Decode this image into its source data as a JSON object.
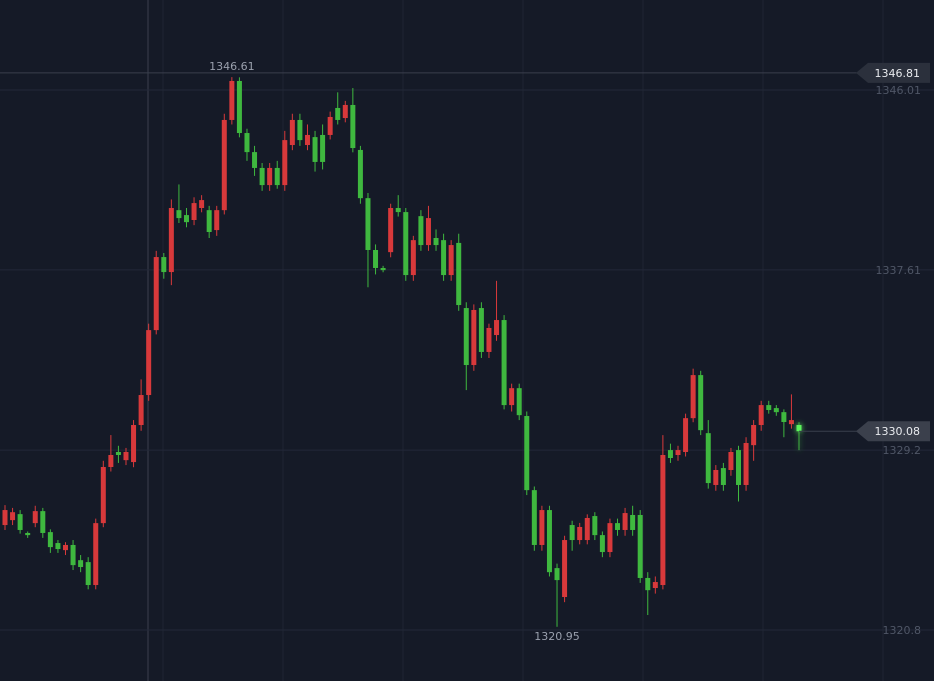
{
  "chart_data": {
    "type": "candlestick",
    "up_color": "#d8393b",
    "down_color": "#3fb83f",
    "grid": true,
    "ylim": [
      1318.42,
      1350.21
    ],
    "yticks": [
      1346.01,
      1337.61,
      1329.2,
      1320.8
    ],
    "crosshair": 1346.81,
    "open": [
      1325.7,
      1325.93,
      1326.21,
      1325.33,
      1325.79,
      1326.35,
      1325.37,
      1324.86,
      1324.53,
      1324.77,
      1324.06,
      1323.97,
      1322.9,
      1325.79,
      1328.41,
      1329.11,
      1328.73,
      1328.64,
      1330.37,
      1331.77,
      1334.8,
      1338.21,
      1337.51,
      1340.4,
      1340.17,
      1339.94,
      1340.5,
      1340.4,
      1339.47,
      1340.4,
      1344.61,
      1346.43,
      1344.0,
      1343.11,
      1342.37,
      1341.57,
      1342.37,
      1341.57,
      1343.44,
      1344.61,
      1343.44,
      1343.81,
      1343.91,
      1343.91,
      1345.17,
      1344.7,
      1345.31,
      1343.21,
      1340.96,
      1338.54,
      1337.7,
      1338.44,
      1340.5,
      1340.31,
      1337.37,
      1340.12,
      1338.77,
      1339.1,
      1339.0,
      1337.37,
      1338.87,
      1335.83,
      1333.17,
      1335.83,
      1333.78,
      1334.57,
      1335.27,
      1331.3,
      1332.09,
      1330.79,
      1327.33,
      1324.77,
      1326.4,
      1323.69,
      1322.34,
      1325.7,
      1325.0,
      1325.0,
      1326.12,
      1325.23,
      1324.44,
      1325.79,
      1325.47,
      1326.17,
      1326.17,
      1323.23,
      1322.76,
      1322.9,
      1329.2,
      1328.97,
      1329.11,
      1330.69,
      1332.7,
      1329.99,
      1327.57,
      1328.36,
      1328.27,
      1329.2,
      1327.57,
      1329.43,
      1330.37,
      1331.3,
      1331.16,
      1330.97,
      1330.41,
      1330.37
    ],
    "high": [
      1326.63,
      1326.5,
      1326.4,
      1325.4,
      1326.6,
      1326.5,
      1325.5,
      1325.0,
      1324.9,
      1325.0,
      1324.3,
      1324.2,
      1326.0,
      1328.7,
      1329.9,
      1329.4,
      1329.3,
      1330.6,
      1332.5,
      1335.1,
      1338.5,
      1338.4,
      1340.9,
      1341.6,
      1340.5,
      1341.0,
      1341.1,
      1340.6,
      1340.6,
      1344.9,
      1346.61,
      1346.6,
      1344.2,
      1343.4,
      1342.6,
      1342.6,
      1342.7,
      1344.1,
      1344.9,
      1344.9,
      1344.4,
      1344.1,
      1344.4,
      1345.0,
      1345.9,
      1345.5,
      1346.1,
      1343.4,
      1341.2,
      1338.8,
      1337.8,
      1340.7,
      1341.1,
      1340.5,
      1339.2,
      1340.4,
      1340.6,
      1339.5,
      1339.3,
      1339.0,
      1339.3,
      1336.1,
      1336.0,
      1336.1,
      1335.1,
      1337.1,
      1335.5,
      1332.3,
      1332.3,
      1331.0,
      1327.5,
      1326.6,
      1326.6,
      1323.9,
      1325.2,
      1325.9,
      1325.8,
      1326.2,
      1326.3,
      1325.4,
      1326.0,
      1326.0,
      1326.5,
      1326.6,
      1326.4,
      1323.5,
      1323.3,
      1329.9,
      1329.5,
      1329.4,
      1330.9,
      1333.0,
      1332.9,
      1330.6,
      1328.5,
      1328.6,
      1329.3,
      1329.4,
      1329.8,
      1330.6,
      1331.5,
      1331.5,
      1331.3,
      1331.1,
      1331.8,
      1330.5
    ],
    "low": [
      1325.47,
      1325.7,
      1325.3,
      1325.1,
      1325.6,
      1325.1,
      1324.4,
      1324.4,
      1324.3,
      1323.6,
      1323.5,
      1322.7,
      1322.7,
      1325.6,
      1328.2,
      1328.6,
      1328.5,
      1328.4,
      1330.1,
      1331.5,
      1334.6,
      1337.2,
      1336.9,
      1339.8,
      1339.6,
      1339.7,
      1340.3,
      1339.1,
      1339.2,
      1340.2,
      1344.4,
      1343.8,
      1342.7,
      1342.0,
      1341.3,
      1341.3,
      1341.4,
      1341.3,
      1343.2,
      1343.4,
      1343.2,
      1342.2,
      1342.3,
      1343.7,
      1344.4,
      1344.5,
      1343.1,
      1340.7,
      1336.8,
      1337.4,
      1337.5,
      1338.2,
      1340.1,
      1337.1,
      1337.1,
      1338.5,
      1338.5,
      1338.5,
      1337.1,
      1337.1,
      1335.7,
      1332.0,
      1332.9,
      1333.5,
      1333.5,
      1334.3,
      1331.1,
      1331.0,
      1330.6,
      1327.1,
      1324.5,
      1324.5,
      1323.3,
      1320.95,
      1322.1,
      1324.5,
      1324.8,
      1324.8,
      1325.0,
      1324.2,
      1324.2,
      1325.2,
      1325.2,
      1325.2,
      1323.0,
      1321.5,
      1322.5,
      1322.7,
      1328.6,
      1328.7,
      1328.9,
      1330.5,
      1329.9,
      1327.4,
      1327.3,
      1327.3,
      1328.0,
      1326.8,
      1327.3,
      1328.7,
      1330.1,
      1330.9,
      1330.8,
      1329.8,
      1330.2,
      1329.2
    ],
    "close": [
      1326.4,
      1326.3,
      1325.47,
      1325.23,
      1326.35,
      1325.33,
      1324.67,
      1324.58,
      1324.77,
      1323.83,
      1323.74,
      1322.9,
      1325.79,
      1328.41,
      1328.97,
      1328.97,
      1329.11,
      1330.37,
      1331.77,
      1334.8,
      1338.21,
      1337.51,
      1340.5,
      1340.03,
      1339.84,
      1340.73,
      1340.87,
      1339.38,
      1340.4,
      1344.61,
      1346.43,
      1344.0,
      1343.11,
      1342.37,
      1341.57,
      1342.37,
      1341.57,
      1343.67,
      1344.61,
      1343.67,
      1343.91,
      1342.65,
      1342.65,
      1344.75,
      1344.61,
      1345.31,
      1343.3,
      1340.96,
      1338.54,
      1337.7,
      1337.6,
      1340.5,
      1340.31,
      1337.37,
      1339.0,
      1338.77,
      1340.03,
      1338.77,
      1337.37,
      1338.77,
      1335.97,
      1333.17,
      1335.74,
      1333.78,
      1334.9,
      1335.27,
      1331.3,
      1332.09,
      1330.83,
      1327.33,
      1324.77,
      1326.4,
      1323.5,
      1323.13,
      1325.0,
      1325.0,
      1325.61,
      1326.03,
      1325.23,
      1324.44,
      1325.79,
      1325.47,
      1326.26,
      1325.47,
      1323.23,
      1322.66,
      1323.04,
      1328.97,
      1328.83,
      1329.2,
      1330.69,
      1332.7,
      1330.13,
      1327.66,
      1328.27,
      1327.57,
      1329.11,
      1327.57,
      1329.53,
      1330.37,
      1331.3,
      1331.07,
      1330.97,
      1330.51,
      1330.6,
      1330.08
    ]
  }
}
